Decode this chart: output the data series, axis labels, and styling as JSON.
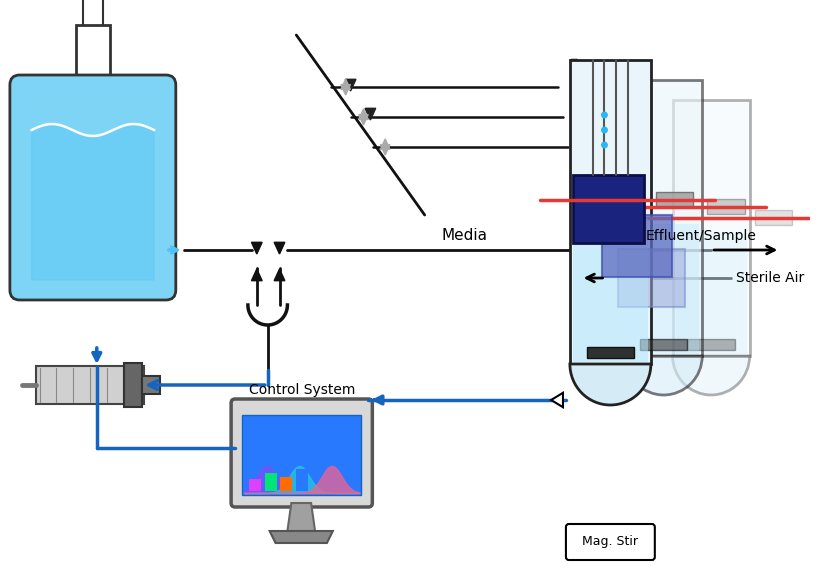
{
  "bg_color": "#ffffff",
  "media_label": "Media",
  "effluent_label": "Effluent/Sample",
  "sterile_air_label": "Sterile Air",
  "mag_stir_label": "Mag. Stir",
  "control_system_label": "Control System",
  "bottle_color": "#7ed4f5",
  "bottle_outline": "#333333",
  "tube_color": "#e8f4fb",
  "tube_outline": "#222222",
  "dark_blue_block": "#1a237e",
  "mid_blue_block": "#7986cb",
  "light_blue_block": "#b0bec5",
  "red_line_color": "#e53935",
  "blue_arrow_color": "#1565c0",
  "black_line_color": "#111111"
}
